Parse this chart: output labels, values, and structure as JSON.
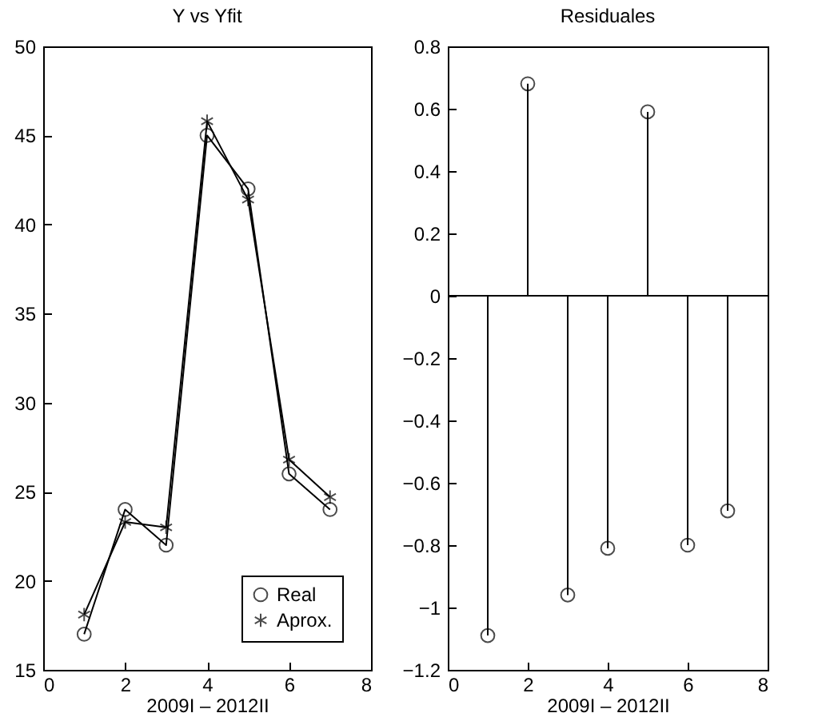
{
  "chart_data": [
    {
      "type": "line",
      "title": "Y vs Yfit",
      "xlabel": "2009I – 2012II",
      "x": [
        1,
        2,
        3,
        4,
        5,
        6,
        7
      ],
      "xlim": [
        0,
        8
      ],
      "xticks": [
        0,
        2,
        4,
        6,
        8
      ],
      "ylim": [
        15,
        50
      ],
      "yticks": [
        15,
        20,
        25,
        30,
        35,
        40,
        45,
        50
      ],
      "grid": false,
      "legend": "bottom right",
      "series": [
        {
          "name": "Real",
          "color": "#000000",
          "marker": "circle",
          "values": [
            17,
            24,
            22,
            45,
            42,
            26,
            24
          ]
        },
        {
          "name": "Aprox.",
          "color": "#000000",
          "marker": "cross",
          "values": [
            18.1,
            23.3,
            23.0,
            45.8,
            41.4,
            26.8,
            24.7
          ]
        }
      ]
    },
    {
      "type": "lollipop",
      "title": "Residuales",
      "xlabel": "2009I – 2012II",
      "x": [
        1,
        2,
        3,
        4,
        5,
        6,
        7
      ],
      "xlim": [
        0,
        8
      ],
      "xticks": [
        0,
        2,
        4,
        6,
        8
      ],
      "ylim": [
        -1.2,
        0.8
      ],
      "yticks": [
        -1.2,
        -1,
        -0.8,
        -0.6,
        -0.4,
        -0.2,
        0,
        0.2,
        0.4,
        0.6,
        0.8
      ],
      "grid": false,
      "marker": "circle",
      "color": "#000000",
      "values": [
        -1.09,
        0.68,
        -0.96,
        -0.81,
        0.59,
        -0.8,
        -0.69
      ],
      "ref_lines": [
        {
          "axis": "y",
          "value": 0,
          "color": "#000000"
        }
      ]
    }
  ]
}
